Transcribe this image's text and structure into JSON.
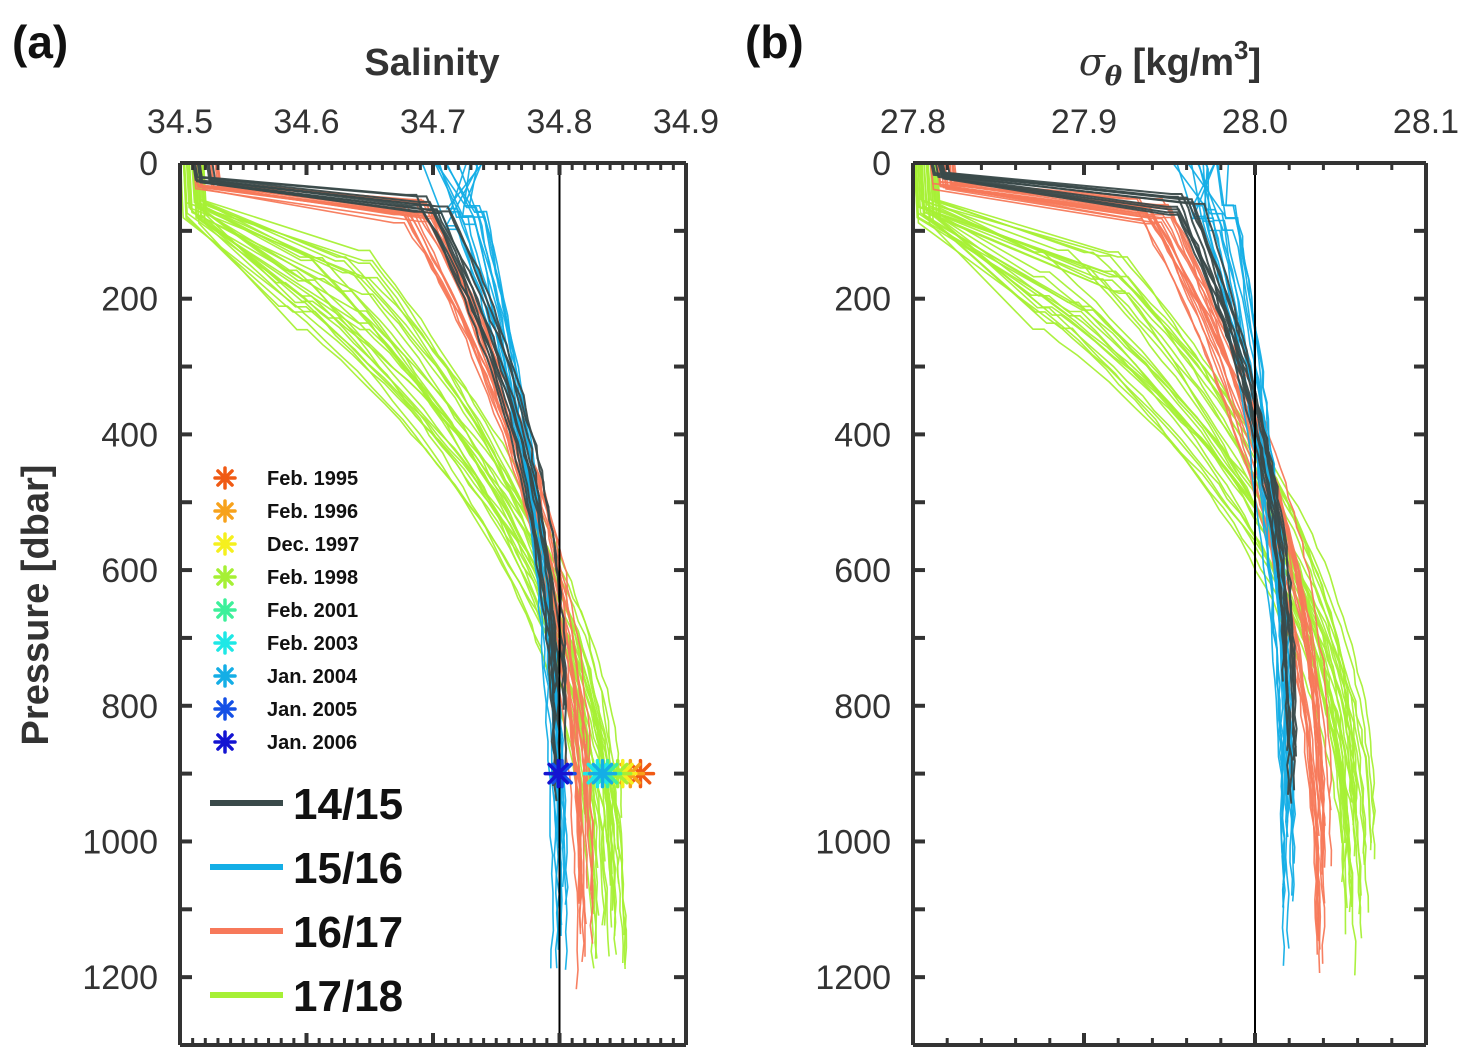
{
  "panels": {
    "a": {
      "letter": "(a)"
    },
    "b": {
      "letter": "(b)"
    }
  },
  "chart_data": [
    {
      "type": "line",
      "panel": "(a)",
      "title": "",
      "xlabel": "Salinity",
      "ylabel": "Pressure [dbar]",
      "xlim": [
        34.5,
        34.9
      ],
      "ylim": [
        1300,
        0
      ],
      "x_axis_position": "top",
      "y_reversed": true,
      "xticks": [
        "34.5",
        "34.6",
        "34.7",
        "34.8",
        "34.9"
      ],
      "yticks": [
        "0",
        "200",
        "400",
        "600",
        "800",
        "1000",
        "1200"
      ],
      "reference_line_x": 34.8,
      "series": [
        {
          "name": "14/15",
          "color": "#3a4a4a",
          "profiles": [
            {
              "surface": 34.51,
              "mid": 34.7,
              "deep": 34.8,
              "z_surface": 20,
              "z_mix": 45,
              "bottom": 960
            }
          ]
        },
        {
          "name": "15/16",
          "color": "#14aee6",
          "profiles": [
            {
              "surface": 34.69,
              "mid": 34.73,
              "deep": 34.8,
              "z_surface": 0,
              "z_mix": 70,
              "bottom": 1230
            }
          ]
        },
        {
          "name": "16/17",
          "color": "#f7795a",
          "profiles": [
            {
              "surface": 34.51,
              "mid": 34.69,
              "deep": 34.82,
              "z_surface": 30,
              "z_mix": 60,
              "bottom": 1220
            }
          ]
        },
        {
          "name": "17/18",
          "color": "#a6f035",
          "profiles": [
            {
              "surface": 34.5,
              "mid": 34.62,
              "deep": 34.84,
              "z_surface": 60,
              "z_mix": 150,
              "bottom": 1220
            }
          ]
        }
      ],
      "markers": [
        {
          "label": "Feb. 1995",
          "color": "#f05a14",
          "x": 34.864,
          "y": 900
        },
        {
          "label": "Feb. 1996",
          "color": "#f7a21c",
          "x": 34.856,
          "y": 900
        },
        {
          "label": "Dec. 1997",
          "color": "#f5f01e",
          "x": 34.85,
          "y": 900
        },
        {
          "label": "Feb. 1998",
          "color": "#a6f035",
          "x": 34.846,
          "y": 900
        },
        {
          "label": "Feb. 2001",
          "color": "#3df09a",
          "x": 34.838,
          "y": 900
        },
        {
          "label": "Feb. 2003",
          "color": "#1ee8e6",
          "x": 34.83,
          "y": 900
        },
        {
          "label": "Jan. 2004",
          "color": "#14aee6",
          "x": 34.834,
          "y": 900
        },
        {
          "label": "Jan. 2005",
          "color": "#1450e6",
          "x": 34.802,
          "y": 900
        },
        {
          "label": "Jan. 2006",
          "color": "#1414d2",
          "x": 34.799,
          "y": 900
        }
      ]
    },
    {
      "type": "line",
      "panel": "(b)",
      "title": "",
      "xlabel": "σθ [kg/m3]",
      "ylabel": "",
      "xlim": [
        27.8,
        28.1
      ],
      "ylim": [
        1300,
        0
      ],
      "x_axis_position": "top",
      "y_reversed": true,
      "xticks": [
        "27.8",
        "27.9",
        "28.0",
        "28.1"
      ],
      "yticks": [
        "0",
        "200",
        "400",
        "600",
        "800",
        "1000",
        "1200"
      ],
      "reference_line_x": 28.0,
      "series": [
        {
          "name": "14/15",
          "color": "#3a4a4a",
          "profiles": [
            {
              "surface": 27.81,
              "mid": 27.96,
              "deep": 28.02,
              "z_surface": 15,
              "z_mix": 50,
              "bottom": 970
            }
          ]
        },
        {
          "name": "15/16",
          "color": "#14aee6",
          "profiles": [
            {
              "surface": 27.95,
              "mid": 27.98,
              "deep": 28.02,
              "z_surface": 0,
              "z_mix": 70,
              "bottom": 1215
            }
          ]
        },
        {
          "name": "16/17",
          "color": "#f7795a",
          "profiles": [
            {
              "surface": 27.81,
              "mid": 27.94,
              "deep": 28.04,
              "z_surface": 30,
              "z_mix": 60,
              "bottom": 1200
            }
          ]
        },
        {
          "name": "17/18",
          "color": "#a6f035",
          "profiles": [
            {
              "surface": 27.8,
              "mid": 27.9,
              "deep": 28.06,
              "z_surface": 60,
              "z_mix": 150,
              "bottom": 1200
            }
          ]
        }
      ]
    }
  ],
  "legend": {
    "markers_title": "",
    "series_labels": [
      "14/15",
      "15/16",
      "16/17",
      "17/18"
    ]
  }
}
